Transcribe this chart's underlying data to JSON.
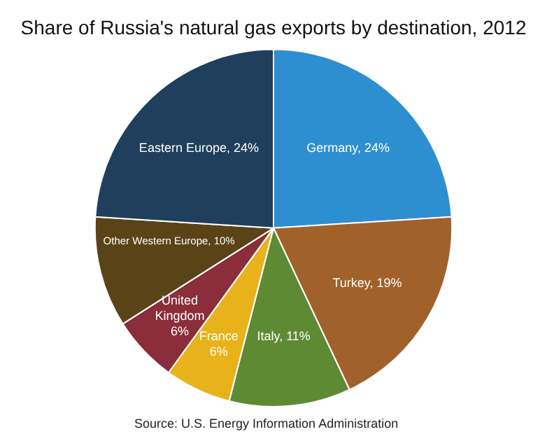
{
  "chart_data": {
    "type": "pie",
    "title": "Share of Russia's natural gas exports by destination, 2012",
    "categories": [
      "Germany",
      "Turkey",
      "Italy",
      "France",
      "United Kingdom",
      "Other Western Europe",
      "Eastern Europe"
    ],
    "values": [
      24,
      19,
      11,
      6,
      6,
      10,
      24
    ],
    "value_labels": [
      "24%",
      "19%",
      "11%",
      "6%",
      "6%",
      "10%",
      "24%"
    ],
    "colors": [
      "#2e8fd0",
      "#a0612a",
      "#5e8a34",
      "#e8b21a",
      "#8b2d3a",
      "#5a4316",
      "#1f3f5c"
    ],
    "annotations": [
      "Source: U.S. Energy Information Administration"
    ],
    "legend": false
  }
}
